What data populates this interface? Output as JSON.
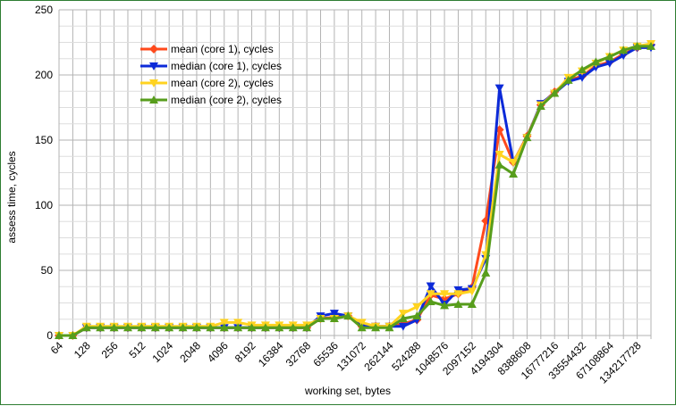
{
  "chart_data": {
    "type": "line",
    "title": "",
    "xlabel": "working set, bytes",
    "ylabel": "assess time, cycles",
    "ylim": [
      0,
      250
    ],
    "yticks": [
      0,
      50,
      100,
      150,
      200,
      250
    ],
    "grid": true,
    "legend": "top-left",
    "x": [
      64,
      96,
      128,
      192,
      256,
      384,
      512,
      768,
      1024,
      1536,
      2048,
      3072,
      4096,
      6144,
      8192,
      12288,
      16384,
      24576,
      32768,
      49152,
      65536,
      98304,
      131072,
      196608,
      262144,
      393216,
      524288,
      786432,
      1048576,
      1572864,
      2097152,
      3145728,
      4194304,
      6291456,
      8388608,
      12582912,
      16777216,
      25165824,
      33554432,
      50331648,
      67108864,
      100663296,
      134217728,
      201326592
    ],
    "x_tick_labels": [
      "64",
      "128",
      "256",
      "512",
      "1024",
      "2048",
      "4096",
      "8192",
      "16384",
      "32768",
      "65536",
      "131072",
      "262144",
      "524288",
      "1048576",
      "2097152",
      "4194304",
      "8388608",
      "16777216",
      "33554432",
      "67108864",
      "134217728"
    ],
    "series": [
      {
        "name": "mean (core 1), cycles",
        "color": "#ff4a1c",
        "marker": "diamond",
        "values": [
          0,
          0,
          6,
          6,
          6,
          6,
          6,
          6,
          6,
          6,
          6,
          6,
          6,
          6,
          6,
          6,
          6,
          6,
          6,
          13,
          14,
          15,
          7,
          7,
          7,
          9,
          12,
          31,
          28,
          32,
          37,
          88,
          158,
          133,
          153,
          177,
          187,
          196,
          199,
          207,
          210,
          216,
          221,
          223
        ]
      },
      {
        "name": "median (core 1), cycles",
        "color": "#0c2ad8",
        "marker": "triangle-down",
        "values": [
          0,
          0,
          6,
          6,
          6,
          6,
          6,
          6,
          6,
          6,
          6,
          6,
          6,
          6,
          6,
          6,
          6,
          6,
          6,
          15,
          17,
          15,
          7,
          7,
          7,
          7,
          12,
          38,
          24,
          35,
          36,
          59,
          190,
          133,
          152,
          178,
          186,
          195,
          198,
          206,
          209,
          215,
          221,
          221
        ]
      },
      {
        "name": "mean (core 2), cycles",
        "color": "#ffd320",
        "marker": "triangle-down",
        "values": [
          0,
          0,
          7,
          7,
          7,
          7,
          7,
          7,
          7,
          7,
          7,
          7,
          10,
          10,
          8,
          8,
          8,
          8,
          8,
          13,
          13,
          15,
          10,
          7,
          7,
          17,
          22,
          32,
          32,
          32,
          34,
          62,
          139,
          133,
          152,
          177,
          186,
          198,
          203,
          209,
          214,
          219,
          222,
          224
        ]
      },
      {
        "name": "median (core 2), cycles",
        "color": "#579d1c",
        "marker": "triangle-up",
        "values": [
          0,
          0,
          6,
          6,
          6,
          6,
          6,
          6,
          6,
          6,
          6,
          6,
          6,
          6,
          6,
          6,
          6,
          6,
          6,
          13,
          13,
          15,
          6,
          6,
          6,
          13,
          15,
          26,
          23,
          24,
          24,
          48,
          131,
          124,
          152,
          176,
          186,
          196,
          204,
          210,
          214,
          219,
          222,
          222
        ]
      }
    ]
  }
}
